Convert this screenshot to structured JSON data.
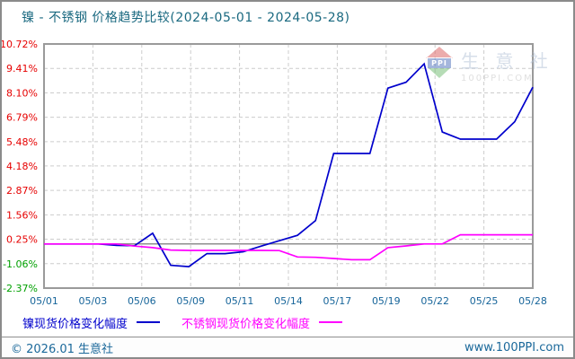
{
  "header": {
    "title": "镍 - 不锈钢 价格趋势比较(2024-05-01 - 2024-05-28)"
  },
  "watermark": {
    "logo_text": "PPI",
    "brand": "生 意 社",
    "domain": "100PPI.COM"
  },
  "legend": [
    {
      "label": "镍现货价格变化幅度",
      "color": "#0000cc"
    },
    {
      "label": "不锈钢现货价格变化幅度",
      "color": "#ff00ff"
    }
  ],
  "footer": {
    "left": "© 2026.01 生意社",
    "right": "www.100PPI.com"
  },
  "chart_data": {
    "type": "line",
    "title": "镍 - 不锈钢 价格趋势比较(2024-05-01 - 2024-05-28)",
    "unit": "%",
    "grid": "dashed",
    "legend_position": "bottom",
    "ylim": [
      -2.37,
      10.72
    ],
    "zero_line": 0,
    "y_tick_labels": [
      "10.72%",
      "9.41%",
      "8.10%",
      "6.79%",
      "5.48%",
      "4.18%",
      "2.87%",
      "1.56%",
      "0.25%",
      "-1.06%",
      "-2.37%"
    ],
    "x_tick_labels": [
      "05/01",
      "05/03",
      "05/06",
      "05/09",
      "05/11",
      "05/14",
      "05/17",
      "05/19",
      "05/22",
      "05/25",
      "05/28"
    ],
    "x": [
      "05/01",
      "05/02",
      "05/03",
      "05/04",
      "05/05",
      "05/06",
      "05/07",
      "05/08",
      "05/09",
      "05/10",
      "05/11",
      "05/12",
      "05/13",
      "05/14",
      "05/15",
      "05/16",
      "05/17",
      "05/18",
      "05/19",
      "05/20",
      "05/21",
      "05/22",
      "05/23",
      "05/24",
      "05/25",
      "05/26",
      "05/27",
      "05/28"
    ],
    "series": [
      {
        "name": "镍现货价格变化幅度",
        "color": "#0000cc",
        "values": [
          0,
          0,
          0,
          0,
          -0.08,
          -0.1,
          0.57,
          -1.15,
          -1.22,
          -0.52,
          -0.52,
          -0.42,
          -0.12,
          0.17,
          0.46,
          1.25,
          4.85,
          4.85,
          4.85,
          8.35,
          8.67,
          9.65,
          6.0,
          5.62,
          5.62,
          5.62,
          6.55,
          8.4
        ]
      },
      {
        "name": "不锈钢现货价格变化幅度",
        "color": "#ff00ff",
        "values": [
          0,
          0,
          0,
          0,
          0,
          -0.12,
          -0.2,
          -0.33,
          -0.35,
          -0.35,
          -0.35,
          -0.35,
          -0.35,
          -0.36,
          -0.7,
          -0.72,
          -0.78,
          -0.85,
          -0.85,
          -0.2,
          -0.11,
          0,
          0,
          0.49,
          0.49,
          0.49,
          0.49,
          0.49
        ]
      }
    ],
    "colors": {
      "positive_tick": "#e60000",
      "negative_tick": "#00a000",
      "x_tick": "#17659a",
      "gridline": "#cccccc",
      "plot_border": "#9a9a9a",
      "zero_line": "#8f8f8f"
    }
  }
}
